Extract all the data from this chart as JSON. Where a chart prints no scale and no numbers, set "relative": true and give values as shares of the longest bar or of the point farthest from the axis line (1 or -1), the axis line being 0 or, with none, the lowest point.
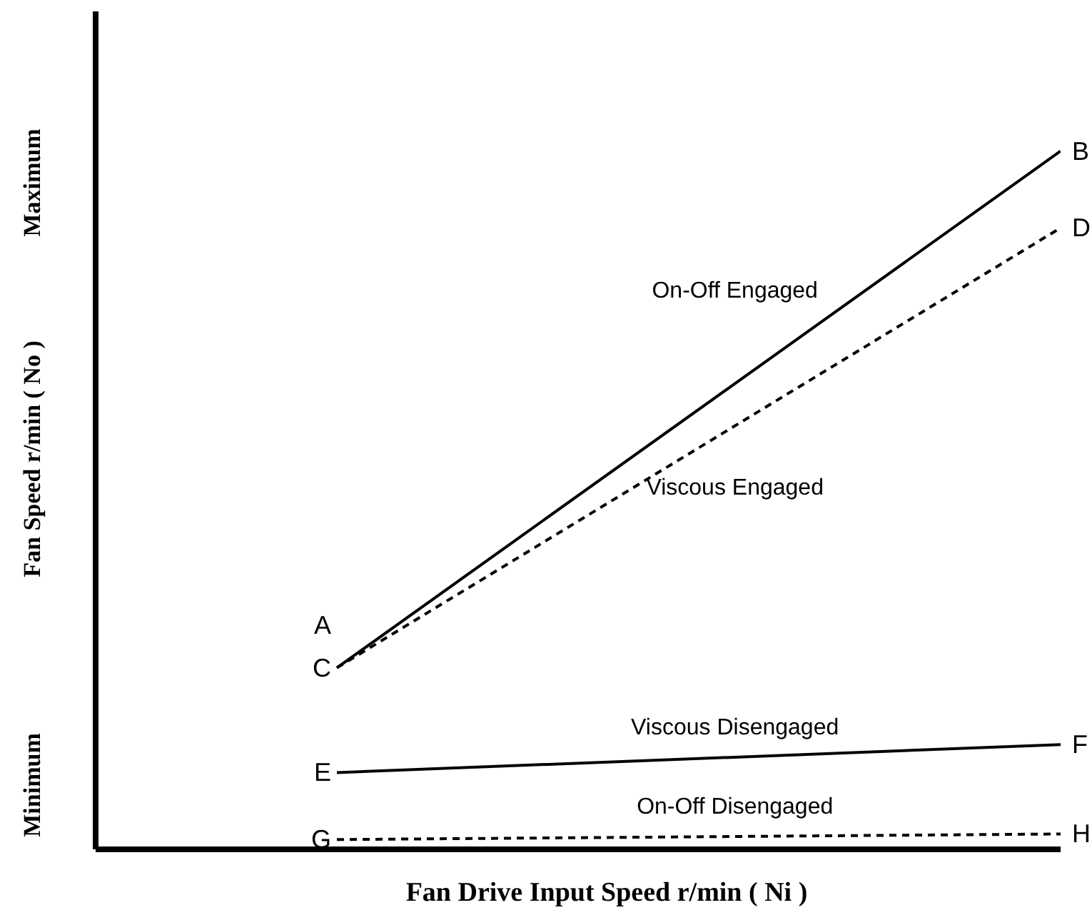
{
  "chart_data": {
    "type": "line",
    "relative": true,
    "xlabel": "Fan Drive Input Speed r/min ( Ni )",
    "ylabel": "Fan Speed r/min ( No )",
    "categories": [
      null,
      null,
      null,
      null,
      null
    ],
    "marker": "none",
    "series": [
      {
        "name": "On-Off Engaged",
        "color": "#000000",
        "line_style": "solid",
        "values": [
          null,
          0.26,
          null,
          null,
          1
        ]
      },
      {
        "name": "Viscous Engaged",
        "color": "#000000",
        "line_style": "dashed",
        "values": [
          null,
          0.26,
          null,
          null,
          0.89
        ]
      },
      {
        "name": "Viscous Disengaged",
        "color": "#000000",
        "line_style": "solid",
        "values": [
          null,
          0.11,
          null,
          null,
          0.15
        ]
      },
      {
        "name": "On-Off Disengaged",
        "color": "#000000",
        "line_style": "dashed",
        "values": [
          null,
          0.014,
          null,
          null,
          0.022
        ]
      }
    ],
    "annotations": [
      "Minimum",
      "Maximum",
      "A",
      "B",
      "C",
      "D",
      "E",
      "F",
      "G",
      "H"
    ]
  }
}
